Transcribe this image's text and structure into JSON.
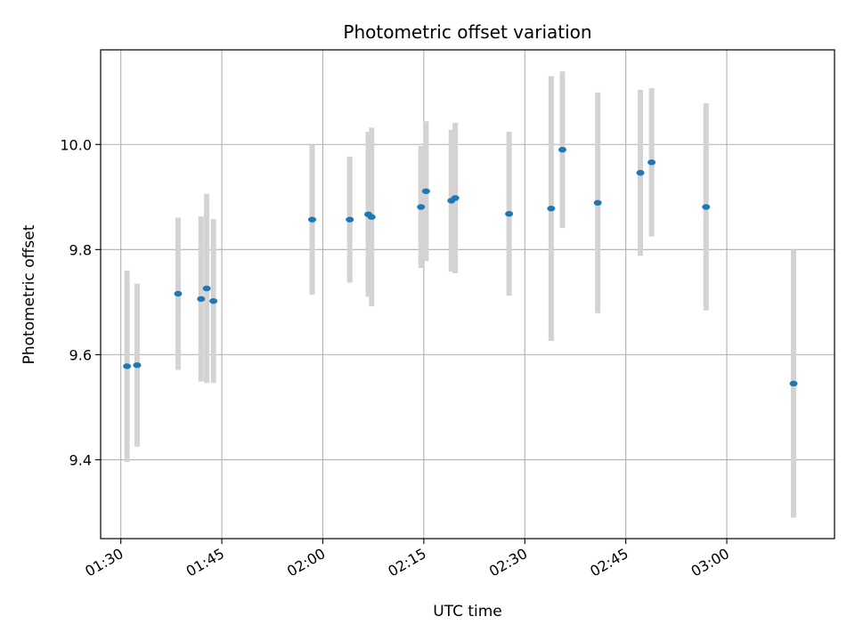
{
  "chart_data": {
    "type": "scatter",
    "title": "Photometric offset variation",
    "xlabel": "UTC time",
    "ylabel": "Photometric offset",
    "grid": true,
    "x_tick_labels": [
      "01:30",
      "01:45",
      "02:00",
      "02:15",
      "02:30",
      "02:45",
      "03:00"
    ],
    "x_tick_values": [
      "01:30",
      "01:45",
      "02:00",
      "02:15",
      "02:30",
      "02:45",
      "03:00"
    ],
    "xlim": [
      "01:27",
      "03:16"
    ],
    "y_tick_values": [
      9.4,
      9.6,
      9.8,
      10.0
    ],
    "y_tick_labels": [
      "9.4",
      "9.6",
      "9.8",
      "10.0"
    ],
    "ylim": [
      9.25,
      10.18
    ],
    "colors": {
      "point": "#1f77b4",
      "errorbar": "#d3d3d3",
      "grid": "#b0b0b0"
    },
    "points": [
      {
        "x": "01:30:55",
        "y": 9.578,
        "yerr": 0.182
      },
      {
        "x": "01:32:25",
        "y": 9.58,
        "yerr": 0.155
      },
      {
        "x": "01:38:30",
        "y": 9.716,
        "yerr": 0.145
      },
      {
        "x": "01:41:55",
        "y": 9.706,
        "yerr": 0.157
      },
      {
        "x": "01:42:45",
        "y": 9.726,
        "yerr": 0.18
      },
      {
        "x": "01:43:45",
        "y": 9.702,
        "yerr": 0.156
      },
      {
        "x": "01:58:25",
        "y": 9.857,
        "yerr": 0.143
      },
      {
        "x": "02:04:00",
        "y": 9.857,
        "yerr": 0.12
      },
      {
        "x": "02:06:45",
        "y": 9.867,
        "yerr": 0.157
      },
      {
        "x": "02:07:15",
        "y": 9.862,
        "yerr": 0.17
      },
      {
        "x": "02:14:35",
        "y": 9.881,
        "yerr": 0.116
      },
      {
        "x": "02:15:20",
        "y": 9.911,
        "yerr": 0.133
      },
      {
        "x": "02:19:05",
        "y": 9.893,
        "yerr": 0.135
      },
      {
        "x": "02:19:40",
        "y": 9.898,
        "yerr": 0.143
      },
      {
        "x": "02:27:40",
        "y": 9.868,
        "yerr": 0.156
      },
      {
        "x": "02:33:55",
        "y": 9.878,
        "yerr": 0.252
      },
      {
        "x": "02:35:35",
        "y": 9.99,
        "yerr": 0.149
      },
      {
        "x": "02:40:50",
        "y": 9.889,
        "yerr": 0.21
      },
      {
        "x": "02:47:10",
        "y": 9.946,
        "yerr": 0.158
      },
      {
        "x": "02:48:50",
        "y": 9.966,
        "yerr": 0.141
      },
      {
        "x": "02:56:55",
        "y": 9.881,
        "yerr": 0.197
      },
      {
        "x": "03:09:55",
        "y": 9.545,
        "yerr": 0.255
      }
    ]
  }
}
